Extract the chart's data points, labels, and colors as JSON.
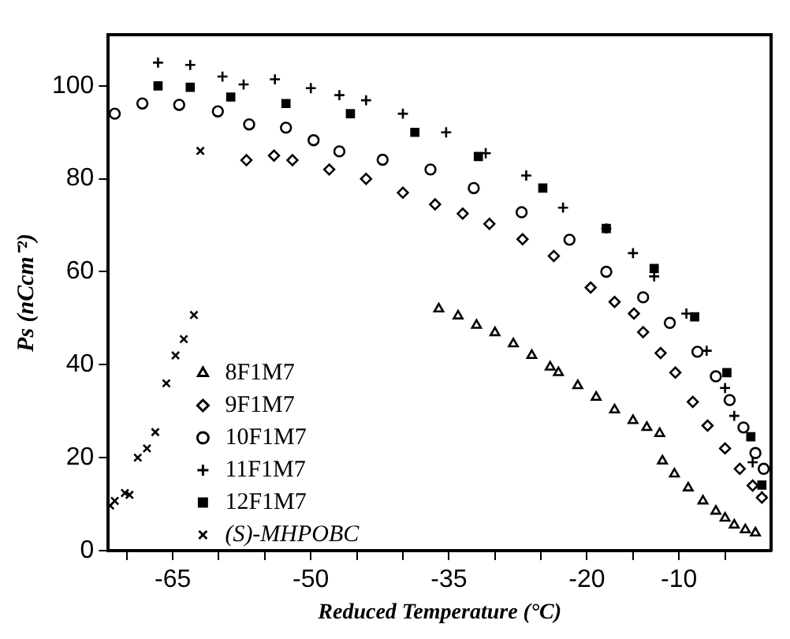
{
  "chart_data": {
    "type": "scatter",
    "xlabel": "Reduced Temperature (°C)",
    "ylabel": "Ps (nCcm⁻²)",
    "xlim": [
      -72,
      0
    ],
    "ylim": [
      0,
      111
    ],
    "xticks": [
      {
        "value": -70,
        "label": null
      },
      -65,
      {
        "value": -60,
        "label": null
      },
      {
        "value": -55,
        "label": null
      },
      -50,
      {
        "value": -45,
        "label": null
      },
      {
        "value": -40,
        "label": null
      },
      -35,
      {
        "value": -30,
        "label": null
      },
      {
        "value": -25,
        "label": null
      },
      -20,
      {
        "value": -15,
        "label": null
      },
      -10,
      {
        "value": -5,
        "label": null
      }
    ],
    "yticks": [
      0,
      20,
      40,
      60,
      80,
      100
    ],
    "legend": "bottom left",
    "grid": false,
    "series": [
      {
        "name": "8F1M7",
        "color": "#000000",
        "marker": "triangle",
        "x": [
          -36.1,
          -34,
          -32,
          -30,
          -28,
          -26,
          -24,
          -23.1,
          -21,
          -19,
          -17,
          -15,
          -13.5,
          -12.1,
          -11.8,
          -10.5,
          -9,
          -7.4,
          -6,
          -5,
          -4,
          -2.8,
          -1.7
        ],
        "values": [
          52,
          50.5,
          48.5,
          46.9,
          44.5,
          42,
          39.5,
          38.3,
          35.5,
          33,
          30.3,
          28,
          26.5,
          25.2,
          19.3,
          16.5,
          13.5,
          10.7,
          8.5,
          7,
          5.5,
          4.5,
          3.8
        ]
      },
      {
        "name": "9F1M7",
        "color": "#000000",
        "marker": "diamond",
        "x": [
          -57,
          -54,
          -52,
          -48,
          -44,
          -40,
          -36.5,
          -33.5,
          -30.6,
          -27,
          -23.6,
          -19.6,
          -17,
          -14.9,
          -13.9,
          -12,
          -10.4,
          -8.5,
          -6.9,
          -5,
          -3.4,
          -2,
          -1
        ],
        "values": [
          84,
          85,
          84,
          82,
          80,
          77,
          74.5,
          72.5,
          70.3,
          67,
          63.4,
          56.6,
          53.5,
          51,
          47,
          42.5,
          38.3,
          32,
          26.9,
          22,
          17.6,
          14,
          11.4
        ]
      },
      {
        "name": "10F1M7",
        "color": "#000000",
        "marker": "circle",
        "x": [
          -71.3,
          -68.3,
          -64.3,
          -60.1,
          -56.7,
          -52.7,
          -49.7,
          -46.9,
          -42.2,
          -37,
          -32.3,
          -27.1,
          -21.9,
          -17.9,
          -13.9,
          -11,
          -8,
          -6,
          -4.5,
          -3,
          -1.7,
          -0.8
        ],
        "values": [
          94,
          96.2,
          95.9,
          94.5,
          91.7,
          91,
          88.3,
          85.9,
          84.1,
          82,
          78,
          72.8,
          66.9,
          60,
          54.5,
          49,
          42.8,
          37.5,
          32.4,
          26.5,
          21,
          17.6
        ]
      },
      {
        "name": "11F1M7",
        "color": "#000000",
        "marker": "cross",
        "x": [
          -66.6,
          -63.1,
          -59.6,
          -57.3,
          -53.9,
          -50,
          -46.9,
          -44,
          -40,
          -35.3,
          -31,
          -26.6,
          -22.6,
          -17.9,
          -15,
          -12.7,
          -9.2,
          -7,
          -5,
          -4.0,
          -2,
          -1
        ],
        "values": [
          105,
          104.5,
          102,
          100.3,
          101.4,
          99.5,
          98,
          96.9,
          94,
          90,
          85.5,
          80.7,
          73.8,
          69.3,
          64,
          59,
          51,
          43,
          35,
          29,
          19,
          11.7
        ]
      },
      {
        "name": "12F1M7",
        "color": "#000000",
        "marker": "square",
        "x": [
          -66.6,
          -63.1,
          -58.7,
          -52.7,
          -45.7,
          -38.7,
          -31.8,
          -24.8,
          -17.9,
          -12.7,
          -8.3,
          -4.8,
          -2.2,
          -1
        ],
        "values": [
          100,
          99.7,
          97.6,
          96.2,
          94,
          90,
          84.8,
          78,
          69.3,
          60.7,
          50.3,
          38.3,
          24.5,
          14.1
        ]
      },
      {
        "name": "(S)-MHPOBC",
        "color": "#000000",
        "marker": "x",
        "x": [
          -71.8,
          -71.3,
          -70.2,
          -69.7,
          -68.8,
          -67.8,
          -66.9,
          -65.7,
          -64.7,
          -63.8,
          -62.7,
          -62.0
        ],
        "values": [
          9.7,
          10.7,
          12.4,
          12,
          20,
          22,
          25.5,
          36,
          42,
          45.5,
          50.7,
          86
        ]
      }
    ]
  }
}
